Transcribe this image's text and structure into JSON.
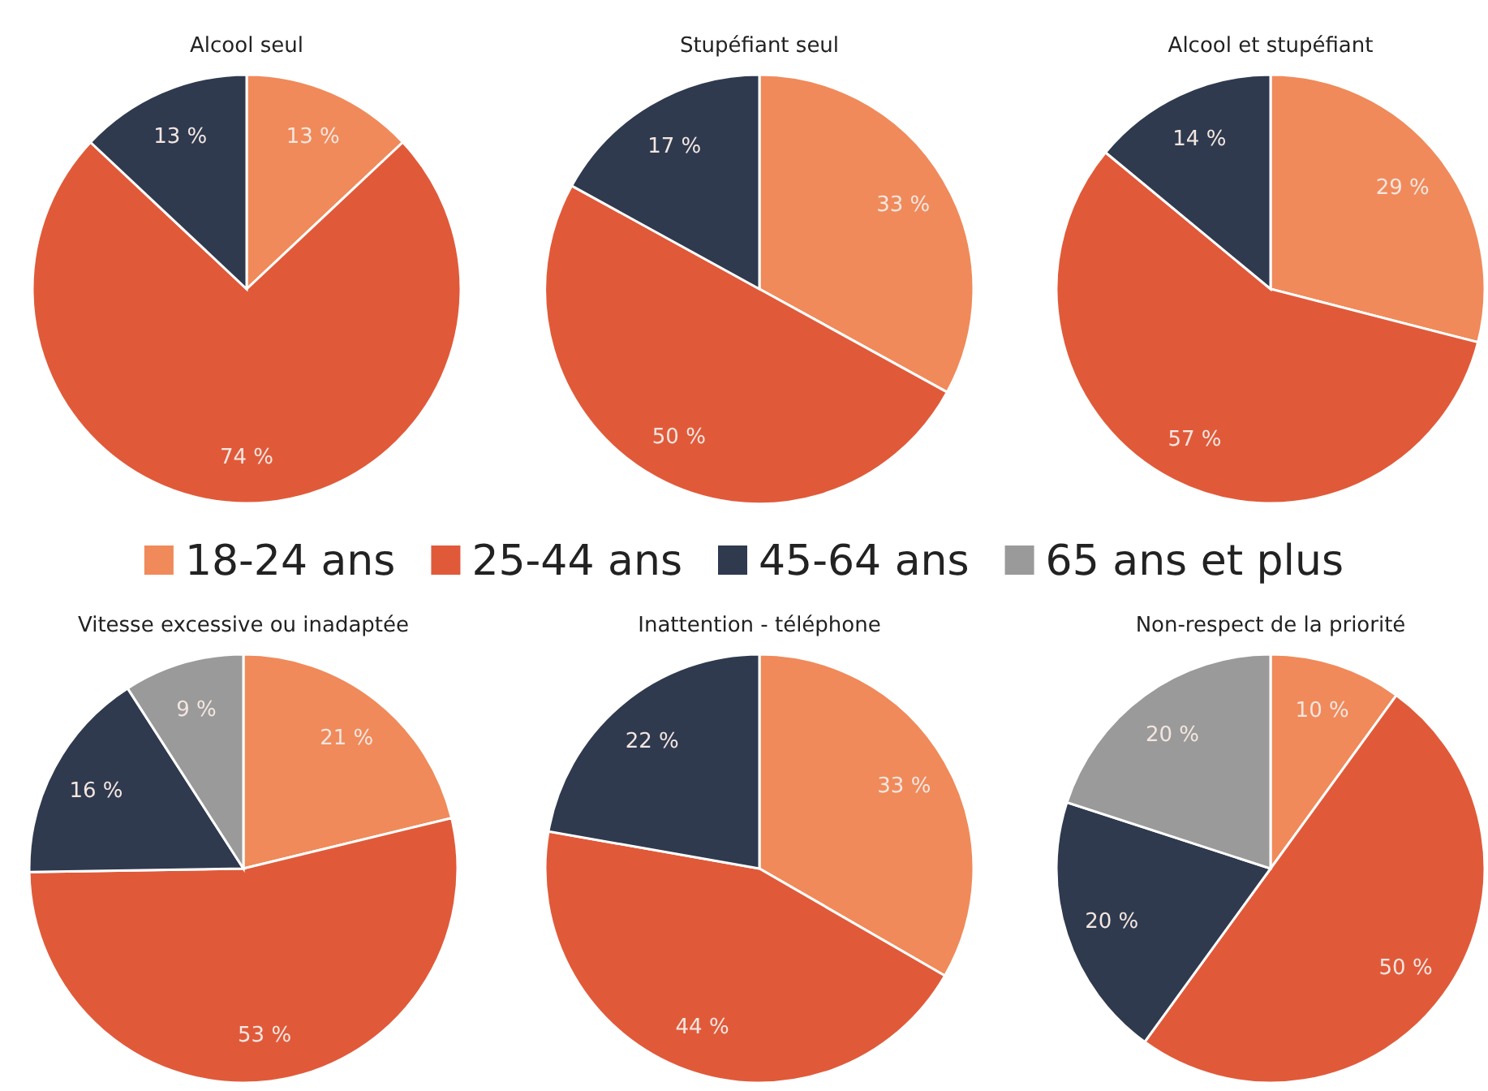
{
  "chart_data": [
    {
      "type": "pie",
      "title": "Alcool seul",
      "categories": [
        null,
        null,
        null
      ],
      "values": [
        13,
        74,
        13
      ],
      "value_labels": [
        "13 %",
        "74 %",
        "13 %"
      ],
      "colors": [
        "#f08a5a",
        "#e05a3a",
        "#2f3a4f"
      ]
    },
    {
      "type": "pie",
      "title": "Stupéfiant seul",
      "categories": [
        null,
        null,
        null
      ],
      "values": [
        33,
        50,
        17
      ],
      "value_labels": [
        "33 %",
        "50 %",
        "17 %"
      ],
      "colors": [
        "#f08a5a",
        "#e05a3a",
        "#2f3a4f"
      ]
    },
    {
      "type": "pie",
      "title": "Alcool et stupéfiant",
      "categories": [
        null,
        null,
        null
      ],
      "values": [
        29,
        57,
        14
      ],
      "value_labels": [
        "29 %",
        "57 %",
        "14 %"
      ],
      "colors": [
        "#f08a5a",
        "#e05a3a",
        "#2f3a4f"
      ]
    },
    {
      "type": "pie",
      "title": "Vitesse excessive ou inadaptée",
      "categories": [
        "18-24 ans",
        "25-44 ans",
        "45-64 ans",
        "65 ans et plus"
      ],
      "values": [
        21,
        53,
        16,
        9
      ],
      "value_labels": [
        "21 %",
        "53 %",
        "16 %",
        "9 %"
      ],
      "colors": [
        "#f08a5a",
        "#e05a3a",
        "#2f3a4f",
        "#9a9a9a"
      ],
      "legend": "top"
    },
    {
      "type": "pie",
      "title": "Inattention - téléphone",
      "categories": [
        null,
        null,
        null
      ],
      "values": [
        33,
        44,
        22
      ],
      "value_labels": [
        "33 %",
        "44 %",
        "22 %"
      ],
      "colors": [
        "#f08a5a",
        "#e05a3a",
        "#2f3a4f"
      ]
    },
    {
      "type": "pie",
      "title": "Non-respect de la priorité",
      "categories": [
        null,
        null,
        null,
        null
      ],
      "values": [
        10,
        50,
        20,
        20
      ],
      "value_labels": [
        "10 %",
        "50 %",
        "20 %",
        "20 %"
      ],
      "colors": [
        "#f08a5a",
        "#e05a3a",
        "#2f3a4f",
        "#9a9a9a"
      ]
    }
  ]
}
